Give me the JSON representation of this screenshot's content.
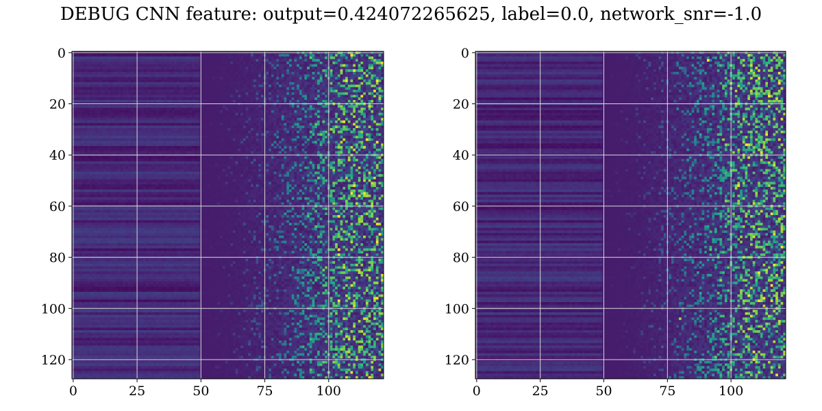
{
  "figure": {
    "title": "DEBUG CNN feature: output=0.424072265625, label=0.0, network_snr=-1.0"
  },
  "chart_data": [
    {
      "type": "heatmap",
      "title": "",
      "xlabel": "",
      "ylabel": "",
      "xlim": [
        -0.5,
        121.5
      ],
      "ylim": [
        127.5,
        -0.5
      ],
      "y_inverted": true,
      "x_ticks": [
        0,
        25,
        50,
        75,
        100
      ],
      "x_tick_labels": [
        "0",
        "25",
        "50",
        "75",
        "100"
      ],
      "y_ticks": [
        0,
        20,
        40,
        60,
        80,
        100,
        120
      ],
      "y_tick_labels": [
        "0",
        "20",
        "40",
        "60",
        "80",
        "100",
        "120"
      ],
      "grid": true,
      "colormap": "viridis",
      "n_rows": 128,
      "n_cols": 122,
      "pattern": "smooth dark horizontal bands for x < ~50, increasingly noisy bright speckles for x > ~65",
      "peak_points": [
        {
          "x": 110,
          "y": 7,
          "value": 1.0
        },
        {
          "x": 104,
          "y": 64,
          "value": 1.0
        },
        {
          "x": 104,
          "y": 77,
          "value": 1.0
        },
        {
          "x": 119,
          "y": 35,
          "value": 1.0
        }
      ]
    },
    {
      "type": "heatmap",
      "title": "",
      "xlabel": "",
      "ylabel": "",
      "xlim": [
        -0.5,
        121.5
      ],
      "ylim": [
        127.5,
        -0.5
      ],
      "y_inverted": true,
      "x_ticks": [
        0,
        25,
        50,
        75,
        100
      ],
      "x_tick_labels": [
        "0",
        "25",
        "50",
        "75",
        "100"
      ],
      "y_ticks": [
        0,
        20,
        40,
        60,
        80,
        100,
        120
      ],
      "y_tick_labels": [
        "0",
        "20",
        "40",
        "60",
        "80",
        "100",
        "120"
      ],
      "grid": true,
      "colormap": "viridis",
      "n_rows": 128,
      "n_cols": 122,
      "pattern": "smooth dark horizontal bands for x < ~50, increasingly noisy bright speckles for x > ~65",
      "peak_points": [
        {
          "x": 91,
          "y": 3,
          "value": 1.0
        },
        {
          "x": 114,
          "y": 32,
          "value": 1.0
        },
        {
          "x": 103,
          "y": 52,
          "value": 1.0
        },
        {
          "x": 80,
          "y": 104,
          "value": 0.85
        }
      ]
    }
  ]
}
